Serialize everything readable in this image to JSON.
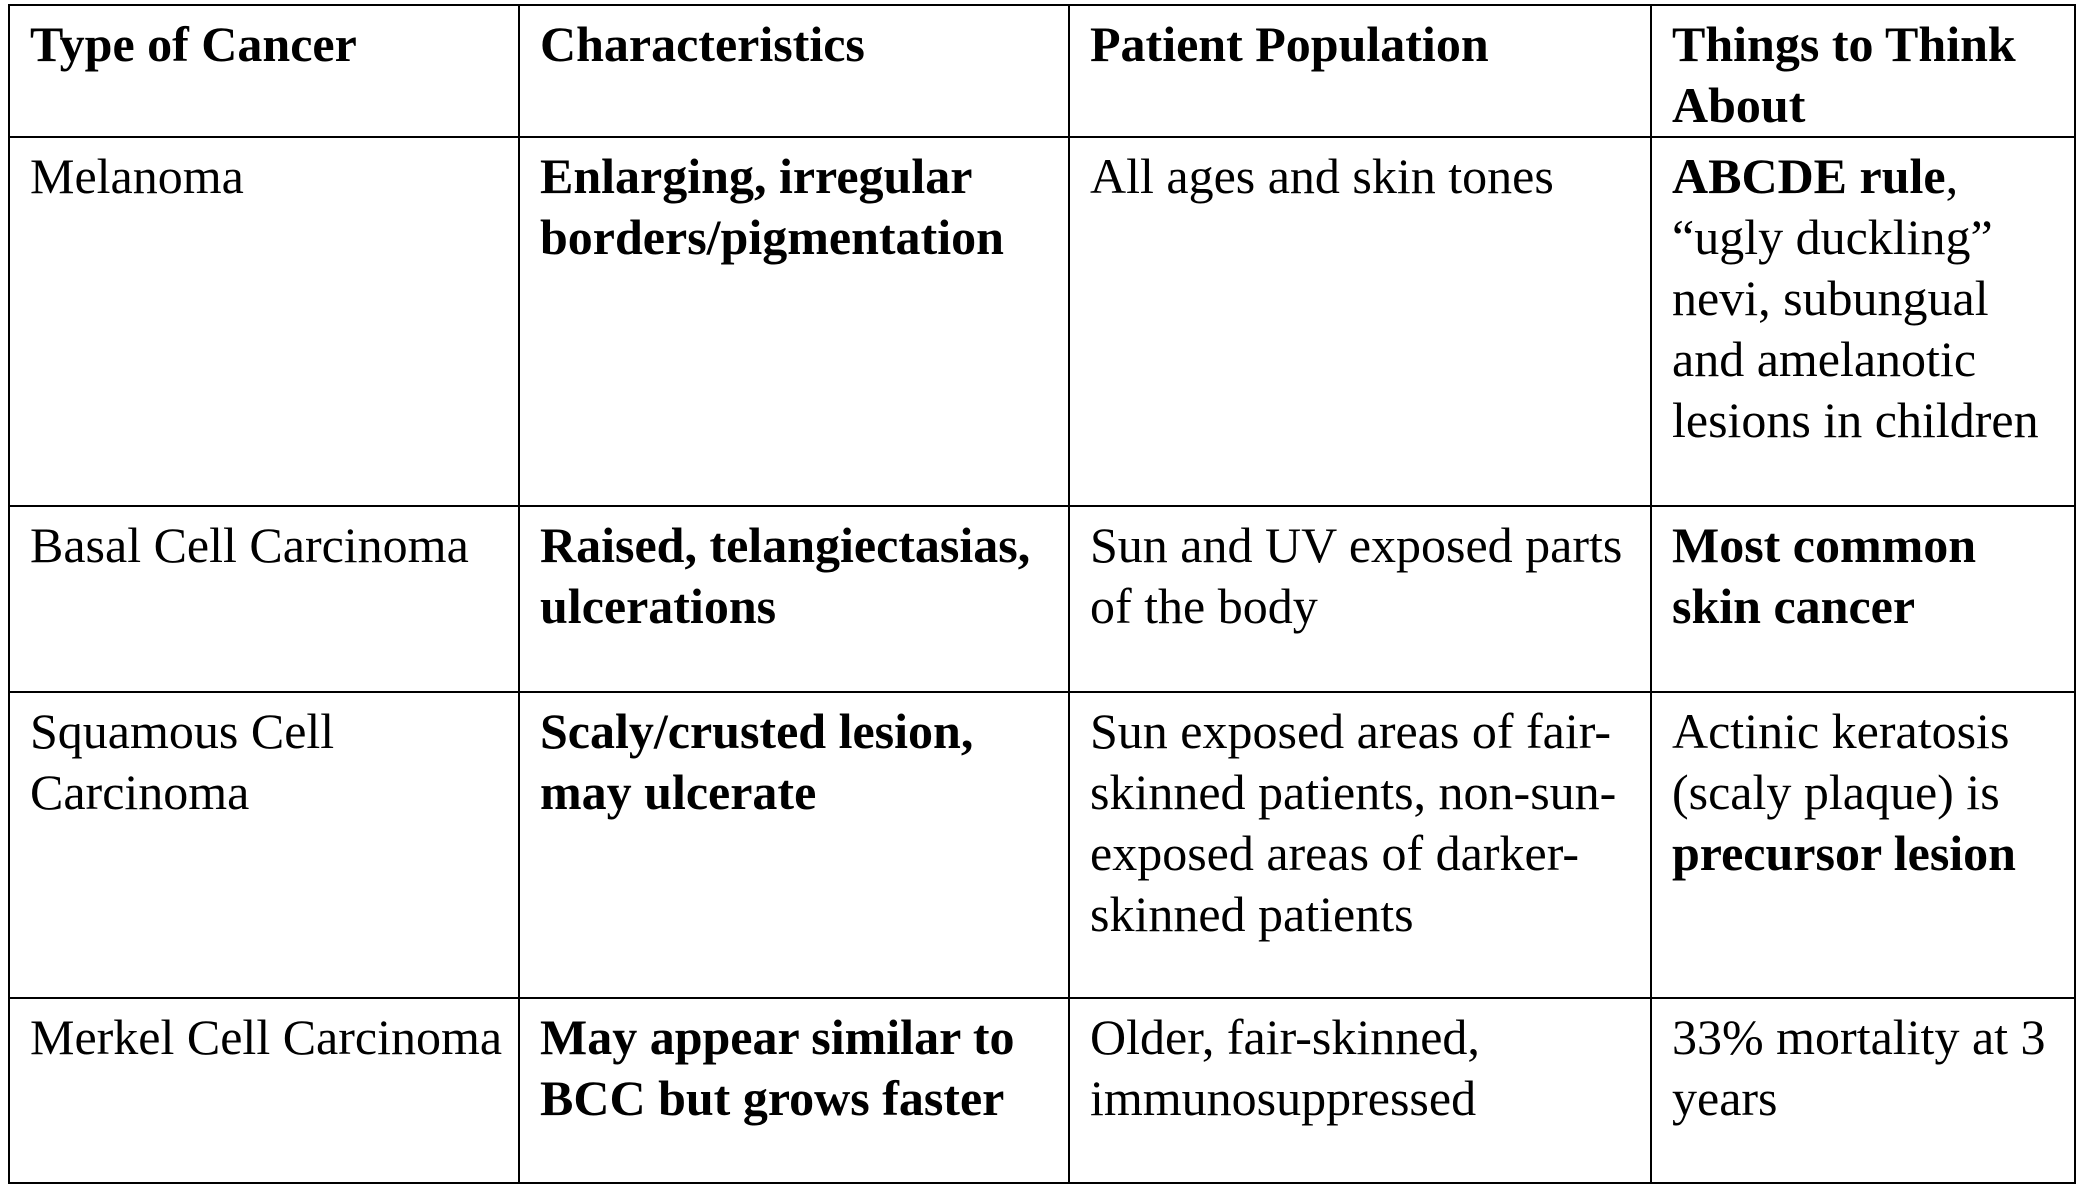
{
  "table": {
    "headers": [
      "Type of Cancer",
      "Characteristics",
      "Patient Population",
      "Things to Think About"
    ],
    "rows": [
      {
        "type": "Melanoma",
        "characteristics": "Enlarging, irregular borders/pigmentation",
        "population": "All ages and skin tones",
        "notes_bold": "ABCDE rule",
        "notes_rest": ", “ugly duckling” nevi, subungual and amelanotic lesions in children"
      },
      {
        "type": "Basal Cell Carcinoma",
        "characteristics": "Raised, telangiectasias, ulcerations",
        "population": "Sun and UV exposed parts of the body",
        "notes_bold": "Most common skin cancer"
      },
      {
        "type": "Squamous Cell Carcinoma",
        "characteristics": "Scaly/crusted lesion, may ulcerate",
        "population": "Sun exposed areas of fair-skinned patients, non-sun-exposed areas of darker-skinned patients",
        "notes_text": "Actinic keratosis (scaly plaque) is ",
        "notes_bold": "precursor lesion"
      },
      {
        "type": "Merkel Cell Carcinoma",
        "characteristics": "May appear similar to BCC but grows faster",
        "population": "Older, fair-skinned, immunosuppressed",
        "notes_text": "33% mortality at 3 years"
      }
    ]
  }
}
